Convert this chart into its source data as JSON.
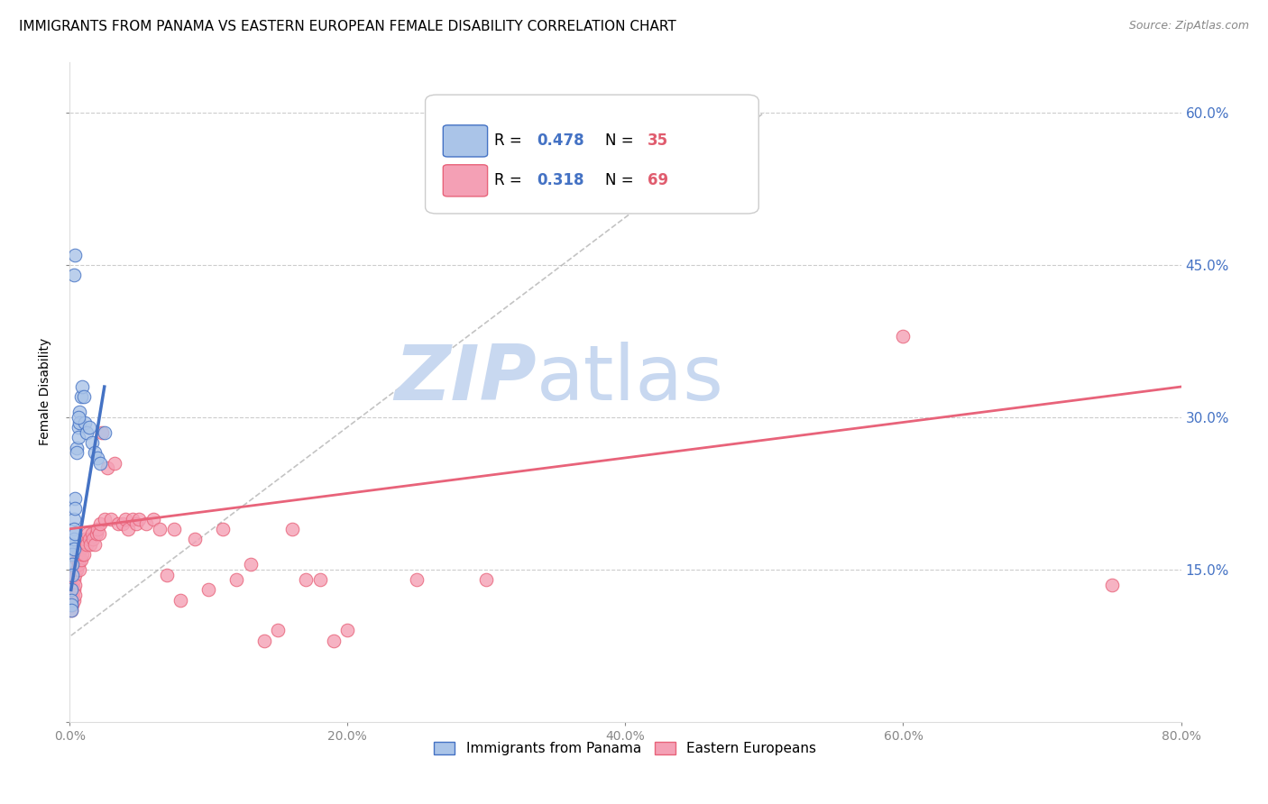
{
  "title": "IMMIGRANTS FROM PANAMA VS EASTERN EUROPEAN FEMALE DISABILITY CORRELATION CHART",
  "source": "Source: ZipAtlas.com",
  "ylabel": "Female Disability",
  "xlim": [
    0.0,
    0.8
  ],
  "ylim": [
    0.0,
    0.65
  ],
  "yticks": [
    0.0,
    0.15,
    0.3,
    0.45,
    0.6
  ],
  "xticks": [
    0.0,
    0.2,
    0.4,
    0.6,
    0.8
  ],
  "series1_name": "Immigrants from Panama",
  "series1_color": "#aac4e8",
  "series1_R": "0.478",
  "series1_N": "35",
  "series2_name": "Eastern Europeans",
  "series2_color": "#f4a0b5",
  "series2_R": "0.318",
  "series2_N": "69",
  "blue_color": "#4472c4",
  "pink_color": "#e8637a",
  "legend_N_color": "#e05c6e",
  "watermark_zip": "ZIP",
  "watermark_atlas": "atlas",
  "watermark_color": "#c8d8f0",
  "title_fontsize": 11,
  "axis_label_fontsize": 9,
  "tick_fontsize": 10,
  "background_color": "#ffffff",
  "panama_x": [
    0.001,
    0.001,
    0.001,
    0.001,
    0.002,
    0.002,
    0.002,
    0.002,
    0.003,
    0.003,
    0.003,
    0.003,
    0.004,
    0.004,
    0.004,
    0.005,
    0.005,
    0.006,
    0.006,
    0.007,
    0.007,
    0.008,
    0.009,
    0.01,
    0.011,
    0.012,
    0.014,
    0.016,
    0.018,
    0.02,
    0.022,
    0.025,
    0.003,
    0.004,
    0.006
  ],
  "panama_y": [
    0.13,
    0.12,
    0.115,
    0.11,
    0.175,
    0.165,
    0.155,
    0.145,
    0.2,
    0.19,
    0.18,
    0.17,
    0.22,
    0.21,
    0.185,
    0.27,
    0.265,
    0.29,
    0.28,
    0.305,
    0.295,
    0.32,
    0.33,
    0.32,
    0.295,
    0.285,
    0.29,
    0.275,
    0.265,
    0.26,
    0.255,
    0.285,
    0.44,
    0.46,
    0.3
  ],
  "eastern_x": [
    0.001,
    0.001,
    0.001,
    0.002,
    0.002,
    0.002,
    0.003,
    0.003,
    0.003,
    0.004,
    0.004,
    0.004,
    0.005,
    0.005,
    0.006,
    0.006,
    0.007,
    0.007,
    0.008,
    0.008,
    0.009,
    0.01,
    0.01,
    0.011,
    0.012,
    0.013,
    0.014,
    0.015,
    0.016,
    0.017,
    0.018,
    0.019,
    0.02,
    0.021,
    0.022,
    0.023,
    0.025,
    0.027,
    0.03,
    0.032,
    0.035,
    0.038,
    0.04,
    0.042,
    0.045,
    0.048,
    0.05,
    0.055,
    0.06,
    0.065,
    0.07,
    0.075,
    0.08,
    0.09,
    0.1,
    0.11,
    0.12,
    0.13,
    0.14,
    0.15,
    0.16,
    0.17,
    0.18,
    0.19,
    0.2,
    0.25,
    0.3,
    0.6,
    0.75
  ],
  "eastern_y": [
    0.13,
    0.12,
    0.11,
    0.135,
    0.125,
    0.115,
    0.14,
    0.13,
    0.12,
    0.145,
    0.135,
    0.125,
    0.16,
    0.15,
    0.165,
    0.155,
    0.16,
    0.15,
    0.17,
    0.16,
    0.165,
    0.175,
    0.165,
    0.18,
    0.175,
    0.185,
    0.18,
    0.175,
    0.185,
    0.18,
    0.175,
    0.185,
    0.19,
    0.185,
    0.195,
    0.285,
    0.2,
    0.25,
    0.2,
    0.255,
    0.195,
    0.195,
    0.2,
    0.19,
    0.2,
    0.195,
    0.2,
    0.195,
    0.2,
    0.19,
    0.145,
    0.19,
    0.12,
    0.18,
    0.13,
    0.19,
    0.14,
    0.155,
    0.08,
    0.09,
    0.19,
    0.14,
    0.14,
    0.08,
    0.09,
    0.14,
    0.14,
    0.38,
    0.135
  ],
  "pink_line_x": [
    0.0,
    0.8
  ],
  "pink_line_y": [
    0.19,
    0.33
  ],
  "blue_line_x": [
    0.001,
    0.025
  ],
  "blue_line_y": [
    0.13,
    0.33
  ],
  "dash_line_x": [
    0.001,
    0.5
  ],
  "dash_line_y": [
    0.085,
    0.6
  ]
}
